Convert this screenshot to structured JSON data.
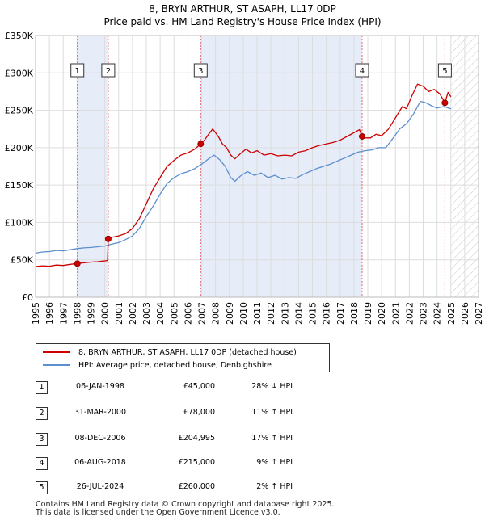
{
  "chart_data": {
    "type": "line",
    "title": "8, BRYN ARTHUR, ST ASAPH, LL17 0DP",
    "subtitle": "Price paid vs. HM Land Registry's House Price Index (HPI)",
    "ylim": [
      0,
      350000
    ],
    "xlim": [
      1995,
      2027
    ],
    "yticks": [
      {
        "value": 0,
        "label": "£0"
      },
      {
        "value": 50000,
        "label": "£50K"
      },
      {
        "value": 100000,
        "label": "£100K"
      },
      {
        "value": 150000,
        "label": "£150K"
      },
      {
        "value": 200000,
        "label": "£200K"
      },
      {
        "value": 250000,
        "label": "£250K"
      },
      {
        "value": 300000,
        "label": "£300K"
      },
      {
        "value": 350000,
        "label": "£350K"
      }
    ],
    "xticks": [
      "1995",
      "1996",
      "1997",
      "1998",
      "1999",
      "2000",
      "2001",
      "2002",
      "2003",
      "2004",
      "2005",
      "2006",
      "2007",
      "2008",
      "2009",
      "2010",
      "2011",
      "2012",
      "2013",
      "2014",
      "2015",
      "2016",
      "2017",
      "2018",
      "2019",
      "2020",
      "2021",
      "2022",
      "2023",
      "2024",
      "2025",
      "2026",
      "2027"
    ],
    "shaded_periods": [
      [
        1998.02,
        2000.25
      ],
      [
        2006.93,
        2018.59
      ]
    ],
    "future_start": 2025.0,
    "series": [
      {
        "name": "8, BRYN ARTHUR, ST ASAPH, LL17 0DP (detached house)",
        "color": "#cc0000",
        "points": [
          [
            1995.0,
            41000
          ],
          [
            1995.5,
            42000
          ],
          [
            1996.0,
            41500
          ],
          [
            1996.5,
            43000
          ],
          [
            1997.0,
            42500
          ],
          [
            1997.5,
            44000
          ],
          [
            1998.02,
            45000
          ],
          [
            1998.5,
            46000
          ],
          [
            1999.0,
            47000
          ],
          [
            1999.5,
            47500
          ],
          [
            2000.2,
            49000
          ],
          [
            2000.25,
            78000
          ],
          [
            2000.5,
            80000
          ],
          [
            2001.0,
            82000
          ],
          [
            2001.5,
            85000
          ],
          [
            2002.0,
            92000
          ],
          [
            2002.5,
            105000
          ],
          [
            2003.0,
            125000
          ],
          [
            2003.5,
            145000
          ],
          [
            2004.0,
            160000
          ],
          [
            2004.5,
            175000
          ],
          [
            2005.0,
            183000
          ],
          [
            2005.5,
            190000
          ],
          [
            2006.0,
            193000
          ],
          [
            2006.5,
            198000
          ],
          [
            2006.93,
            204995
          ],
          [
            2007.2,
            210000
          ],
          [
            2007.5,
            218000
          ],
          [
            2007.8,
            225000
          ],
          [
            2008.2,
            215000
          ],
          [
            2008.5,
            205000
          ],
          [
            2008.8,
            200000
          ],
          [
            2009.1,
            190000
          ],
          [
            2009.4,
            185000
          ],
          [
            2009.8,
            192000
          ],
          [
            2010.2,
            198000
          ],
          [
            2010.6,
            193000
          ],
          [
            2011.0,
            196000
          ],
          [
            2011.5,
            190000
          ],
          [
            2012.0,
            192000
          ],
          [
            2012.5,
            189000
          ],
          [
            2013.0,
            190000
          ],
          [
            2013.5,
            189000
          ],
          [
            2014.0,
            194000
          ],
          [
            2014.5,
            196000
          ],
          [
            2015.0,
            200000
          ],
          [
            2015.5,
            203000
          ],
          [
            2016.0,
            205000
          ],
          [
            2016.5,
            207000
          ],
          [
            2017.0,
            210000
          ],
          [
            2017.5,
            215000
          ],
          [
            2018.0,
            220000
          ],
          [
            2018.4,
            224000
          ],
          [
            2018.59,
            215000
          ],
          [
            2018.8,
            213000
          ],
          [
            2019.2,
            213000
          ],
          [
            2019.6,
            218000
          ],
          [
            2020.0,
            216000
          ],
          [
            2020.5,
            225000
          ],
          [
            2021.0,
            240000
          ],
          [
            2021.5,
            255000
          ],
          [
            2021.8,
            252000
          ],
          [
            2022.2,
            270000
          ],
          [
            2022.6,
            285000
          ],
          [
            2023.0,
            282000
          ],
          [
            2023.4,
            275000
          ],
          [
            2023.8,
            278000
          ],
          [
            2024.2,
            272000
          ],
          [
            2024.57,
            260000
          ],
          [
            2024.8,
            274000
          ],
          [
            2025.0,
            268000
          ]
        ]
      },
      {
        "name": "HPI: Average price, detached house, Denbighshire",
        "color": "#5b8fcf",
        "points": [
          [
            1995.0,
            59000
          ],
          [
            1995.5,
            60500
          ],
          [
            1996.0,
            61000
          ],
          [
            1996.5,
            62500
          ],
          [
            1997.0,
            62000
          ],
          [
            1997.5,
            63500
          ],
          [
            1998.0,
            65000
          ],
          [
            1998.5,
            66000
          ],
          [
            1999.0,
            66500
          ],
          [
            1999.5,
            67500
          ],
          [
            2000.0,
            68500
          ],
          [
            2000.5,
            71000
          ],
          [
            2001.0,
            73000
          ],
          [
            2001.5,
            77000
          ],
          [
            2002.0,
            82000
          ],
          [
            2002.5,
            92000
          ],
          [
            2003.0,
            108000
          ],
          [
            2003.5,
            122000
          ],
          [
            2004.0,
            138000
          ],
          [
            2004.5,
            152000
          ],
          [
            2005.0,
            160000
          ],
          [
            2005.5,
            165000
          ],
          [
            2006.0,
            168000
          ],
          [
            2006.5,
            172000
          ],
          [
            2007.0,
            178000
          ],
          [
            2007.5,
            185000
          ],
          [
            2007.9,
            190000
          ],
          [
            2008.3,
            184000
          ],
          [
            2008.7,
            175000
          ],
          [
            2009.1,
            160000
          ],
          [
            2009.4,
            155000
          ],
          [
            2009.8,
            162000
          ],
          [
            2010.3,
            168000
          ],
          [
            2010.8,
            163000
          ],
          [
            2011.3,
            166000
          ],
          [
            2011.8,
            160000
          ],
          [
            2012.3,
            163000
          ],
          [
            2012.8,
            158000
          ],
          [
            2013.3,
            160000
          ],
          [
            2013.8,
            159000
          ],
          [
            2014.3,
            164000
          ],
          [
            2014.8,
            168000
          ],
          [
            2015.3,
            172000
          ],
          [
            2015.8,
            175000
          ],
          [
            2016.3,
            178000
          ],
          [
            2016.8,
            182000
          ],
          [
            2017.3,
            186000
          ],
          [
            2017.8,
            190000
          ],
          [
            2018.3,
            194000
          ],
          [
            2018.8,
            196000
          ],
          [
            2019.3,
            197000
          ],
          [
            2019.8,
            200000
          ],
          [
            2020.3,
            200000
          ],
          [
            2020.8,
            212000
          ],
          [
            2021.3,
            225000
          ],
          [
            2021.8,
            232000
          ],
          [
            2022.3,
            245000
          ],
          [
            2022.8,
            262000
          ],
          [
            2023.2,
            260000
          ],
          [
            2023.6,
            256000
          ],
          [
            2024.0,
            253000
          ],
          [
            2024.5,
            255000
          ],
          [
            2025.0,
            252000
          ]
        ]
      }
    ],
    "sales": [
      {
        "id": "1",
        "x": 1998.02,
        "y": 45000
      },
      {
        "id": "2",
        "x": 2000.25,
        "y": 78000
      },
      {
        "id": "3",
        "x": 2006.93,
        "y": 204995
      },
      {
        "id": "4",
        "x": 2018.59,
        "y": 215000
      },
      {
        "id": "5",
        "x": 2024.57,
        "y": 260000
      }
    ]
  },
  "legend": {
    "price_paid": "8, BRYN ARTHUR, ST ASAPH, LL17 0DP (detached house)",
    "hpi": "HPI: Average price, detached house, Denbighshire"
  },
  "transactions": [
    {
      "num": "1",
      "date": "06-JAN-1998",
      "price": "£45,000",
      "hpi": "28% ↓ HPI"
    },
    {
      "num": "2",
      "date": "31-MAR-2000",
      "price": "£78,000",
      "hpi": "11% ↑ HPI"
    },
    {
      "num": "3",
      "date": "08-DEC-2006",
      "price": "£204,995",
      "hpi": "17% ↑ HPI"
    },
    {
      "num": "4",
      "date": "06-AUG-2018",
      "price": "£215,000",
      "hpi": "9% ↑ HPI"
    },
    {
      "num": "5",
      "date": "26-JUL-2024",
      "price": "£260,000",
      "hpi": "2% ↑ HPI"
    }
  ],
  "footer": {
    "line1": "Contains HM Land Registry data © Crown copyright and database right 2025.",
    "line2": "This data is licensed under the Open Government Licence v3.0."
  }
}
